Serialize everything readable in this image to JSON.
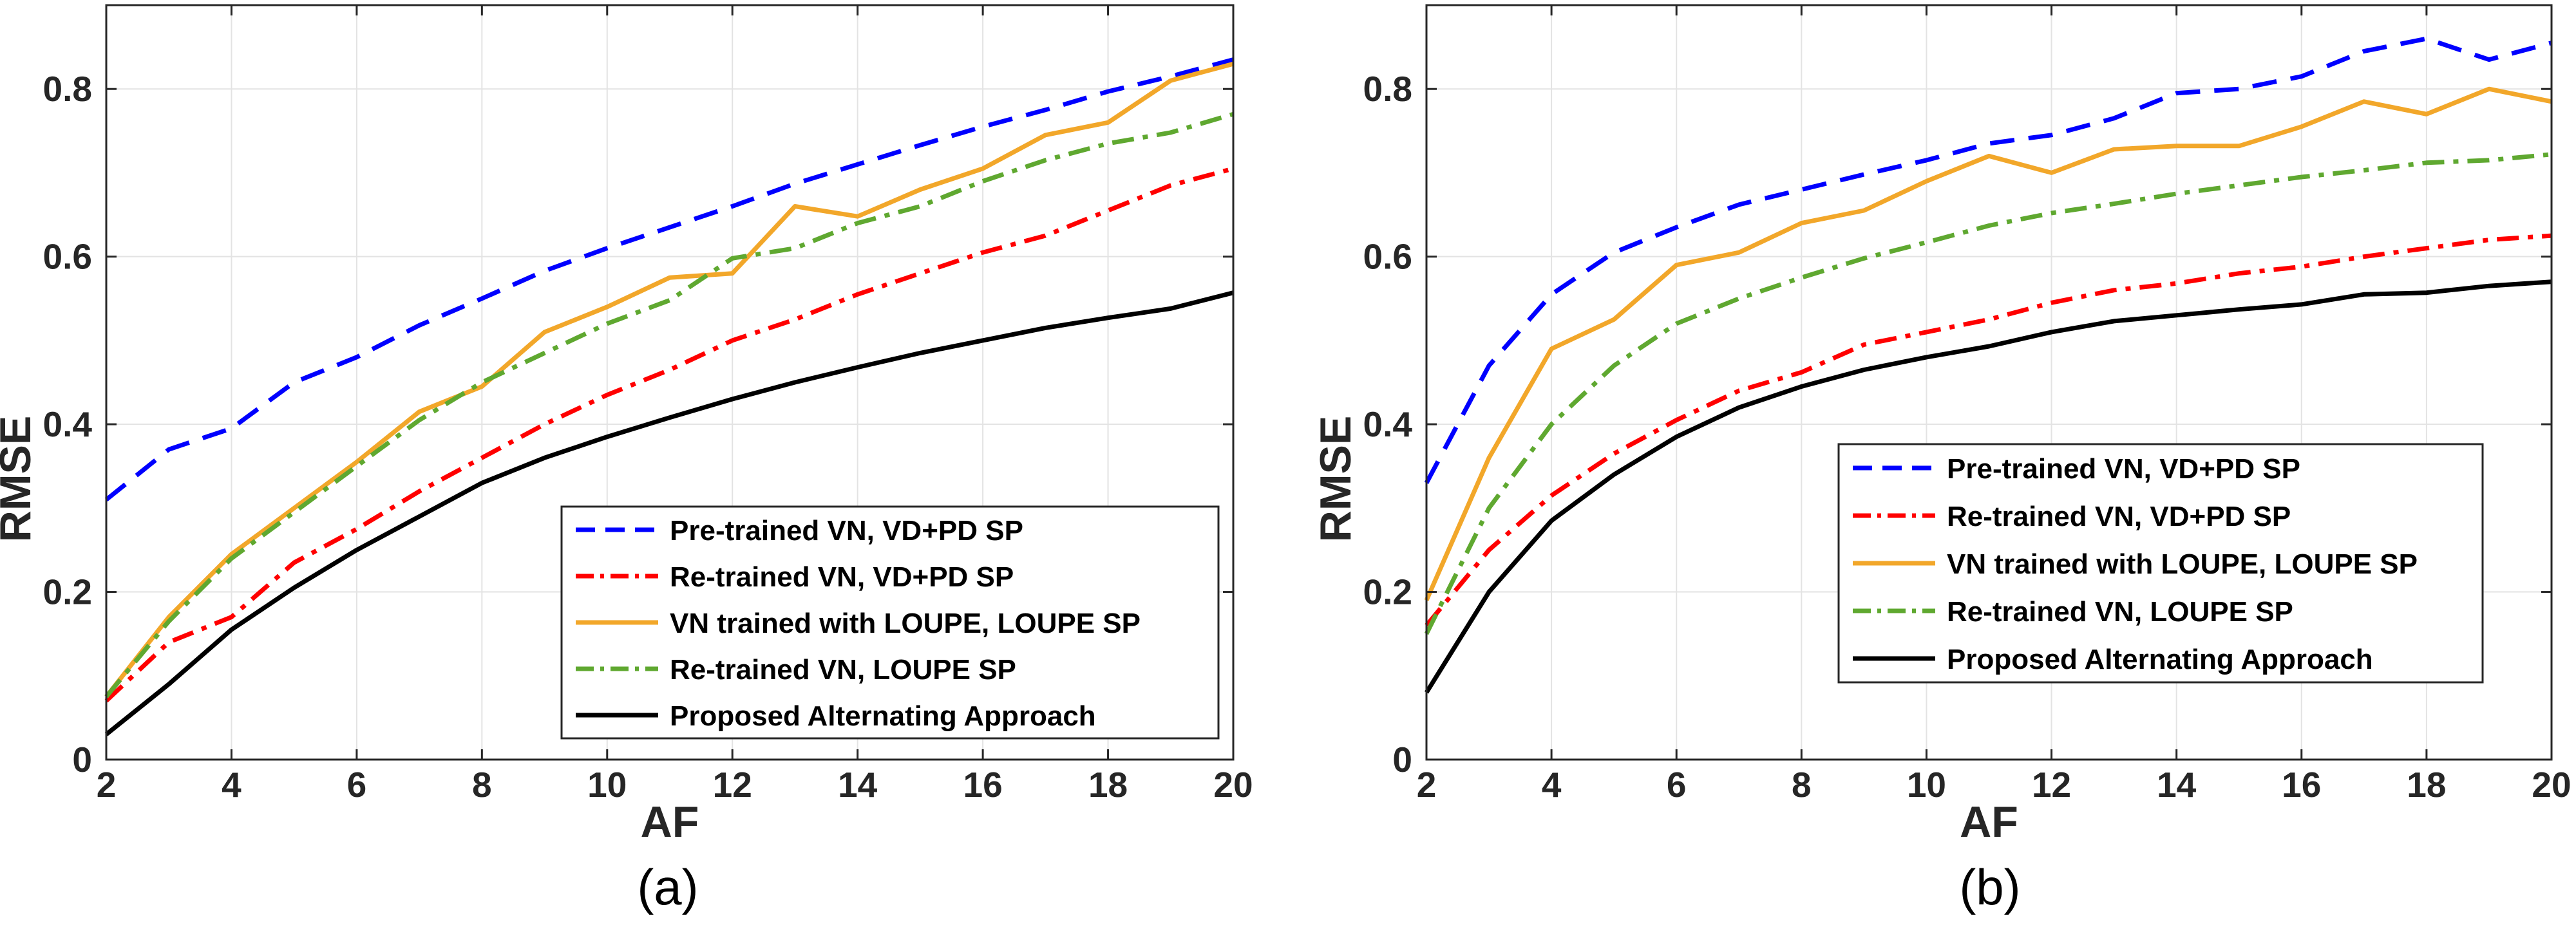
{
  "chart_data": [
    {
      "type": "line",
      "caption": "(a)",
      "title": "",
      "xlabel": "AF",
      "ylabel": "RMSE",
      "xlim": [
        2,
        20
      ],
      "ylim": [
        0,
        0.9
      ],
      "xticks": [
        2,
        4,
        6,
        8,
        10,
        12,
        14,
        16,
        18,
        20
      ],
      "xtick_labels": [
        "2",
        "4",
        "6",
        "8",
        "10",
        "12",
        "14",
        "16",
        "18",
        "20"
      ],
      "yticks": [
        0,
        0.2,
        0.4,
        0.6,
        0.8
      ],
      "ytick_labels": [
        "0",
        "0.2",
        "0.4",
        "0.6",
        "0.8"
      ],
      "grid": true,
      "legend_position": "bottom-right",
      "x": [
        2,
        3,
        4,
        5,
        6,
        7,
        8,
        9,
        10,
        11,
        12,
        13,
        14,
        15,
        16,
        17,
        18,
        19,
        20
      ],
      "series": [
        {
          "name": "Pre-trained VN, VD+PD SP",
          "color": "#0000ff",
          "dash": "dashed",
          "values": [
            0.31,
            0.37,
            0.395,
            0.45,
            0.48,
            0.518,
            0.55,
            0.583,
            0.61,
            0.635,
            0.66,
            0.687,
            0.71,
            0.733,
            0.755,
            0.775,
            0.797,
            0.815,
            0.835
          ]
        },
        {
          "name": "Re-trained VN, VD+PD SP",
          "color": "#ff0000",
          "dash": "dashdot",
          "values": [
            0.07,
            0.14,
            0.17,
            0.235,
            0.275,
            0.32,
            0.36,
            0.4,
            0.435,
            0.465,
            0.5,
            0.525,
            0.555,
            0.58,
            0.605,
            0.625,
            0.655,
            0.685,
            0.705
          ]
        },
        {
          "name": "VN trained with LOUPE, LOUPE SP",
          "color": "#f2a72a",
          "dash": "solid",
          "values": [
            0.075,
            0.17,
            0.245,
            0.3,
            0.355,
            0.415,
            0.445,
            0.51,
            0.54,
            0.575,
            0.58,
            0.66,
            0.648,
            0.68,
            0.705,
            0.745,
            0.76,
            0.81,
            0.83
          ]
        },
        {
          "name": "Re-trained VN, LOUPE SP",
          "color": "#5fa830",
          "dash": "dashdot",
          "values": [
            0.075,
            0.165,
            0.24,
            0.295,
            0.35,
            0.405,
            0.45,
            0.485,
            0.52,
            0.548,
            0.598,
            0.61,
            0.64,
            0.66,
            0.69,
            0.715,
            0.735,
            0.748,
            0.77
          ]
        },
        {
          "name": "Proposed Alternating Approach",
          "color": "#000000",
          "dash": "solid",
          "values": [
            0.03,
            0.09,
            0.155,
            0.205,
            0.25,
            0.29,
            0.33,
            0.36,
            0.385,
            0.408,
            0.43,
            0.45,
            0.468,
            0.485,
            0.5,
            0.515,
            0.527,
            0.538,
            0.557
          ]
        }
      ]
    },
    {
      "type": "line",
      "caption": "(b)",
      "title": "",
      "xlabel": "AF",
      "ylabel": "RMSE",
      "xlim": [
        2,
        20
      ],
      "ylim": [
        0,
        0.9
      ],
      "xticks": [
        2,
        4,
        6,
        8,
        10,
        12,
        14,
        16,
        18,
        20
      ],
      "xtick_labels": [
        "2",
        "4",
        "6",
        "8",
        "10",
        "12",
        "14",
        "16",
        "18",
        "20"
      ],
      "yticks": [
        0,
        0.2,
        0.4,
        0.6,
        0.8
      ],
      "ytick_labels": [
        "0",
        "0.2",
        "0.4",
        "0.6",
        "0.8"
      ],
      "grid": true,
      "legend_position": "middle-right",
      "x": [
        2,
        3,
        4,
        5,
        6,
        7,
        8,
        9,
        10,
        11,
        12,
        13,
        14,
        15,
        16,
        17,
        18,
        19,
        20
      ],
      "series": [
        {
          "name": "Pre-trained VN, VD+PD SP",
          "color": "#0000ff",
          "dash": "dashed",
          "values": [
            0.33,
            0.47,
            0.555,
            0.605,
            0.635,
            0.662,
            0.68,
            0.698,
            0.715,
            0.735,
            0.745,
            0.765,
            0.795,
            0.8,
            0.815,
            0.845,
            0.86,
            0.835,
            0.855
          ]
        },
        {
          "name": "Re-trained VN, VD+PD SP",
          "color": "#ff0000",
          "dash": "dashdot",
          "values": [
            0.16,
            0.25,
            0.315,
            0.365,
            0.405,
            0.44,
            0.462,
            0.495,
            0.51,
            0.525,
            0.545,
            0.56,
            0.568,
            0.58,
            0.588,
            0.6,
            0.61,
            0.62,
            0.625
          ]
        },
        {
          "name": "VN trained with LOUPE, LOUPE SP",
          "color": "#f2a72a",
          "dash": "solid",
          "values": [
            0.19,
            0.36,
            0.49,
            0.525,
            0.59,
            0.605,
            0.64,
            0.655,
            0.69,
            0.72,
            0.7,
            0.728,
            0.732,
            0.732,
            0.755,
            0.785,
            0.77,
            0.8,
            0.785
          ]
        },
        {
          "name": "Re-trained VN, LOUPE SP",
          "color": "#5fa830",
          "dash": "dashdot",
          "values": [
            0.15,
            0.3,
            0.4,
            0.47,
            0.52,
            0.55,
            0.575,
            0.598,
            0.617,
            0.637,
            0.652,
            0.663,
            0.675,
            0.685,
            0.695,
            0.703,
            0.712,
            0.715,
            0.722
          ]
        },
        {
          "name": "Proposed Alternating Approach",
          "color": "#000000",
          "dash": "solid",
          "values": [
            0.08,
            0.2,
            0.285,
            0.34,
            0.385,
            0.42,
            0.445,
            0.465,
            0.48,
            0.493,
            0.51,
            0.523,
            0.53,
            0.537,
            0.543,
            0.555,
            0.557,
            0.565,
            0.57
          ]
        }
      ]
    }
  ]
}
